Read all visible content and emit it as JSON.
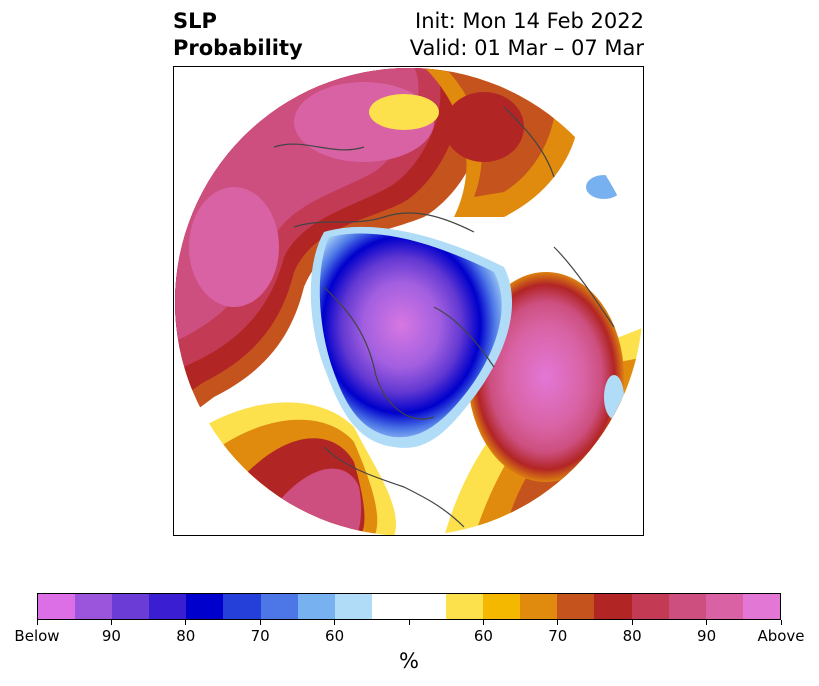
{
  "title": {
    "left_line1": "SLP",
    "left_line2": "Probability",
    "right_line1": "Init: Mon 14 Feb 2022",
    "right_line2": "Valid: 01 Mar – 07 Mar"
  },
  "colorbar": {
    "colors": [
      "#dc6fe6",
      "#9b55dd",
      "#6b3cd6",
      "#3a1fd2",
      "#0000cc",
      "#2440d8",
      "#4d77e6",
      "#77b1f0",
      "#b0dcf8",
      "#ffffff",
      "#ffffff",
      "#fde14c",
      "#f4b800",
      "#e08a0e",
      "#c5531d",
      "#b22525",
      "#c33a55",
      "#cd4f7f",
      "#d862a3",
      "#e377d6"
    ],
    "labels": [
      "Below",
      "90",
      "80",
      "70",
      "60",
      "",
      "60",
      "70",
      "80",
      "90",
      "Above"
    ],
    "units": "%"
  }
}
